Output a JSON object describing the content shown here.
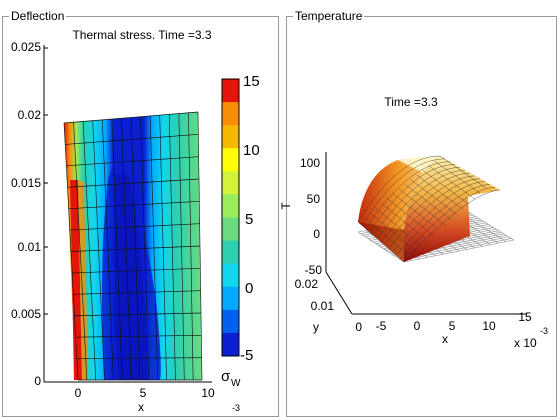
{
  "panels": {
    "left": {
      "title": "Deflection"
    },
    "right": {
      "title": "Temperature"
    }
  },
  "plot_left": {
    "title": "Thermal stress. Time =3.3",
    "xlabel": "x",
    "x_exponent": "-3",
    "y_ticks": [
      "0.025",
      "0.02",
      "0.015",
      "0.01",
      "0.005",
      "0"
    ],
    "x_ticks": [
      "0",
      "5",
      "10"
    ]
  },
  "colorbar": {
    "ticks": [
      "15",
      "10",
      "5",
      "0",
      "-5"
    ],
    "label": "σ",
    "label_sub": "W",
    "colors": [
      "#e4150b",
      "#f88c05",
      "#f6b900",
      "#ffff00",
      "#d2f33a",
      "#9bec5a",
      "#6cdb80",
      "#2ecfb0",
      "#11d7ed",
      "#03aaff",
      "#0061ef",
      "#0a1fd0"
    ]
  },
  "plot_right": {
    "title": "Time =3.3",
    "zlabel": "T",
    "ylabel": "y",
    "xlabel": "x",
    "x_exponent": "x 10",
    "x_exponent_sup": "-3",
    "z_ticks": [
      "100",
      "50",
      "0",
      "-50"
    ],
    "y_ticks": [
      "0.02",
      "0.01",
      "0"
    ],
    "x_ticks": [
      "-5",
      "0",
      "5",
      "10",
      "15"
    ]
  },
  "chart_data": [
    {
      "type": "heatmap",
      "title": "Thermal stress. Time =3.3",
      "xlabel": "x",
      "x_scale": "x 10^-3",
      "xlim": [
        -2.5,
        12
      ],
      "ylim": [
        0,
        0.025
      ],
      "colorbar_range": [
        -5,
        15
      ],
      "colorbar_ticks": [
        -5,
        0,
        5,
        10,
        15
      ],
      "description_values": {
        "left_edge_stress": 15,
        "center_stress": -5,
        "right_edge_stress": 5
      }
    },
    {
      "type": "surface",
      "title": "Time =3.3",
      "zlabel": "T",
      "xlabel": "x",
      "ylabel": "y",
      "z_ticks": [
        -50,
        0,
        50,
        100
      ],
      "x_ticks": [
        -5,
        0,
        5,
        10,
        15
      ],
      "y_ticks": [
        0,
        0.01,
        0.02
      ],
      "peak_T": 100
    }
  ]
}
